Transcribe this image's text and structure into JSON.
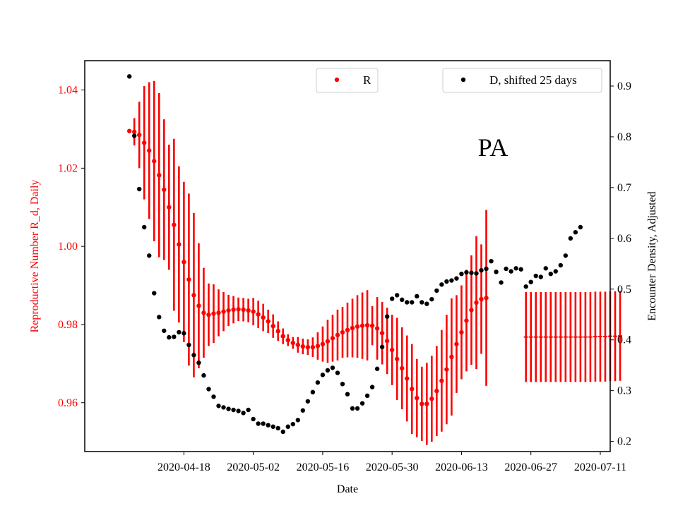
{
  "colors": {
    "r_series": "#ff0000",
    "d_series": "#000000",
    "axis": "#000000",
    "background": "#ffffff"
  },
  "chart_data": {
    "type": "scatter",
    "title": "",
    "annotation": "PA",
    "xlabel": "Date",
    "ylabel_left": "Reproductive Number R_d, Daily",
    "ylabel_right": "Encounter Density, Adjusted",
    "x_axis": {
      "type": "date",
      "range": [
        "2020-03-29",
        "2020-07-13"
      ],
      "tick_labels": [
        "2020-04-18",
        "2020-05-02",
        "2020-05-16",
        "2020-05-30",
        "2020-06-13",
        "2020-06-27",
        "2020-07-11"
      ]
    },
    "y_left": {
      "range": [
        0.9475,
        1.0475
      ],
      "ticks": [
        "0.96",
        "0.98",
        "1.00",
        "1.02",
        "1.04"
      ]
    },
    "y_right": {
      "range": [
        0.18,
        0.95
      ],
      "ticks": [
        "0.2",
        "0.3",
        "0.4",
        "0.5",
        "0.6",
        "0.7",
        "0.8",
        "0.9"
      ]
    },
    "grid": false,
    "legends": [
      {
        "label": "R",
        "placement": "top-center"
      },
      {
        "label": "D, shifted 25 days",
        "placement": "top-right"
      }
    ],
    "series": [
      {
        "name": "R",
        "axis": "left",
        "start_date": "2020-04-07",
        "values": [
          1.0295,
          1.0293,
          1.0285,
          1.0265,
          1.0245,
          1.0218,
          1.0182,
          1.0145,
          1.01,
          1.0055,
          1.0005,
          0.996,
          0.9915,
          0.9875,
          0.9848,
          0.983,
          0.9825,
          0.9828,
          0.983,
          0.9833,
          0.9836,
          0.9838,
          0.9839,
          0.9838,
          0.9836,
          0.9833,
          0.9826,
          0.9818,
          0.9808,
          0.9796,
          0.9783,
          0.977,
          0.976,
          0.9753,
          0.9748,
          0.9744,
          0.9742,
          0.9742,
          0.9745,
          0.975,
          0.9757,
          0.9765,
          0.9773,
          0.978,
          0.9786,
          0.9791,
          0.9795,
          0.9797,
          0.9798,
          0.9797,
          0.979,
          0.9778,
          0.9758,
          0.9735,
          0.9712,
          0.9688,
          0.9662,
          0.9635,
          0.9612,
          0.9597,
          0.9597,
          0.961,
          0.963,
          0.9656,
          0.9685,
          0.9717,
          0.975,
          0.978,
          0.981,
          0.9837,
          0.9856,
          0.9865,
          0.9868
        ],
        "errors": [
          0.0,
          0.0035,
          0.0085,
          0.0145,
          0.0175,
          0.0205,
          0.021,
          0.018,
          0.016,
          0.022,
          0.02,
          0.0205,
          0.022,
          0.021,
          0.016,
          0.0115,
          0.008,
          0.0075,
          0.006,
          0.005,
          0.004,
          0.0035,
          0.003,
          0.003,
          0.003,
          0.0035,
          0.0035,
          0.0035,
          0.003,
          0.003,
          0.0025,
          0.002,
          0.0015,
          0.0015,
          0.002,
          0.002,
          0.002,
          0.0025,
          0.0035,
          0.0045,
          0.0055,
          0.006,
          0.0065,
          0.0065,
          0.007,
          0.0075,
          0.008,
          0.0085,
          0.009,
          0.005,
          0.008,
          0.008,
          0.0085,
          0.009,
          0.0105,
          0.0105,
          0.011,
          0.0115,
          0.01,
          0.0095,
          0.0105,
          0.011,
          0.0115,
          0.013,
          0.014,
          0.015,
          0.0125,
          0.012,
          0.013,
          0.014,
          0.017,
          0.014,
          0.0225
        ]
      },
      {
        "name": "R",
        "axis": "left",
        "start_date": "2020-06-26",
        "values": [
          0.9768,
          0.9768,
          0.9768,
          0.9768,
          0.9768,
          0.9768,
          0.9768,
          0.9768,
          0.9768,
          0.9768,
          0.9768,
          0.9768,
          0.9768,
          0.9768,
          0.9769,
          0.9769,
          0.9769,
          0.977,
          0.977,
          0.9771
        ],
        "errors": [
          0.0115,
          0.0115,
          0.0115,
          0.0115,
          0.0115,
          0.0115,
          0.0115,
          0.0115,
          0.0115,
          0.0115,
          0.0115,
          0.0115,
          0.0115,
          0.0115,
          0.0115,
          0.0115,
          0.0115,
          0.0115,
          0.0115,
          0.0115
        ]
      },
      {
        "name": "D, shifted 25 days",
        "axis": "right",
        "start_date": "2020-04-07",
        "values": [
          0.919,
          0.802,
          0.697,
          0.622,
          0.566,
          0.492,
          0.445,
          0.418,
          0.405,
          0.406,
          0.415,
          0.413,
          0.39,
          0.37,
          0.355,
          0.33,
          0.303,
          0.288,
          0.27,
          0.267,
          0.264,
          0.262,
          0.26,
          0.256,
          0.262,
          0.244,
          0.235,
          0.235,
          0.232,
          0.229,
          0.226,
          0.219,
          0.229,
          0.234,
          0.242,
          0.261,
          0.279,
          0.297,
          0.316,
          0.331,
          0.34,
          0.345,
          0.335,
          0.313,
          0.293,
          0.265,
          0.265,
          0.275,
          0.29,
          0.307,
          0.343,
          0.386,
          0.446,
          0.481,
          0.488,
          0.479,
          0.474,
          0.474,
          0.486,
          0.474,
          0.471,
          0.48,
          0.497,
          0.509,
          0.515,
          0.517,
          0.521,
          0.53,
          0.533,
          0.532,
          0.531,
          0.537,
          0.54,
          0.555,
          0.534,
          0.513,
          0.54,
          0.535,
          0.541,
          0.539,
          0.505,
          0.514,
          0.526,
          0.524,
          0.541,
          0.53,
          0.535,
          0.547,
          0.566,
          0.6,
          0.612,
          0.622
        ]
      }
    ]
  }
}
